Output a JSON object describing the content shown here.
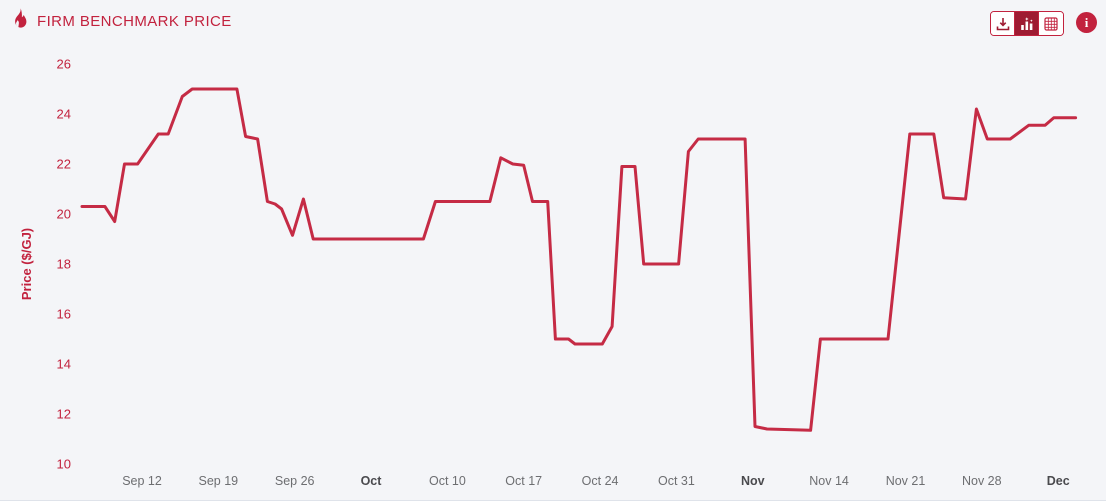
{
  "header": {
    "title": "FIRM BENCHMARK PRICE",
    "toolbar": {
      "buttons": [
        {
          "name": "download",
          "icon": "download-icon",
          "active": false
        },
        {
          "name": "chart-view",
          "icon": "bar-chart-icon",
          "active": true
        },
        {
          "name": "table-view",
          "icon": "grid-icon",
          "active": false
        }
      ],
      "info_label": "i"
    }
  },
  "colors": {
    "background": "#f4f5f8",
    "accent": "#c2223e",
    "line": "#c52b45",
    "dark_red": "#9e1b32",
    "x_label": "#6d6e71",
    "x_label_bold": "#4a4a4e"
  },
  "chart_data": {
    "type": "line",
    "title": "FIRM BENCHMARK PRICE",
    "xlabel": "",
    "ylabel": "Price ($/GJ)",
    "ylim": [
      10,
      26
    ],
    "y_ticks": [
      26,
      24,
      22,
      20,
      18,
      16,
      14,
      12,
      10
    ],
    "grid": false,
    "legend": "none",
    "x_unit": "days from first point (approx. Sep 6 to Dec 6)",
    "x_ticks": [
      {
        "label": "Sep 12",
        "day": 5.5,
        "bold": false
      },
      {
        "label": "Sep 19",
        "day": 12.5,
        "bold": false
      },
      {
        "label": "Sep 26",
        "day": 19.5,
        "bold": false
      },
      {
        "label": "Oct",
        "day": 26.5,
        "bold": true
      },
      {
        "label": "Oct 10",
        "day": 33.5,
        "bold": false
      },
      {
        "label": "Oct 17",
        "day": 40.5,
        "bold": false
      },
      {
        "label": "Oct 24",
        "day": 47.5,
        "bold": false
      },
      {
        "label": "Oct 31",
        "day": 54.5,
        "bold": false
      },
      {
        "label": "Nov",
        "day": 61.5,
        "bold": true
      },
      {
        "label": "Nov 14",
        "day": 68.5,
        "bold": false
      },
      {
        "label": "Nov 21",
        "day": 75.5,
        "bold": false
      },
      {
        "label": "Nov 28",
        "day": 82.5,
        "bold": false
      },
      {
        "label": "Dec",
        "day": 89.5,
        "bold": true
      }
    ],
    "series": [
      {
        "name": "Firm Benchmark Price",
        "unit": "$/GJ",
        "points": [
          [
            0,
            20.3
          ],
          [
            2.1,
            20.3
          ],
          [
            3.0,
            19.7
          ],
          [
            3.9,
            22.0
          ],
          [
            5.1,
            22.0
          ],
          [
            7.0,
            23.2
          ],
          [
            7.9,
            23.2
          ],
          [
            9.2,
            24.7
          ],
          [
            10.1,
            25.0
          ],
          [
            14.2,
            25.0
          ],
          [
            15.0,
            23.1
          ],
          [
            16.1,
            23.0
          ],
          [
            17.0,
            20.5
          ],
          [
            17.7,
            20.4
          ],
          [
            18.3,
            20.2
          ],
          [
            19.3,
            19.15
          ],
          [
            20.3,
            20.6
          ],
          [
            21.2,
            19.0
          ],
          [
            31.3,
            19.0
          ],
          [
            32.4,
            20.5
          ],
          [
            37.4,
            20.5
          ],
          [
            38.4,
            22.25
          ],
          [
            39.5,
            22.0
          ],
          [
            40.5,
            21.95
          ],
          [
            41.3,
            20.5
          ],
          [
            42.7,
            20.5
          ],
          [
            43.4,
            15.0
          ],
          [
            44.6,
            15.0
          ],
          [
            45.2,
            14.8
          ],
          [
            47.7,
            14.8
          ],
          [
            48.6,
            15.5
          ],
          [
            49.5,
            21.9
          ],
          [
            50.7,
            21.9
          ],
          [
            51.5,
            18.0
          ],
          [
            54.7,
            18.0
          ],
          [
            55.6,
            22.5
          ],
          [
            56.5,
            23.0
          ],
          [
            60.8,
            23.0
          ],
          [
            61.7,
            11.5
          ],
          [
            62.8,
            11.4
          ],
          [
            66.8,
            11.35
          ],
          [
            67.7,
            15.0
          ],
          [
            73.9,
            15.0
          ],
          [
            75.9,
            23.2
          ],
          [
            78.1,
            23.2
          ],
          [
            79.0,
            20.65
          ],
          [
            81.0,
            20.6
          ],
          [
            82.0,
            24.2
          ],
          [
            83.0,
            23.0
          ],
          [
            85.1,
            23.0
          ],
          [
            86.8,
            23.55
          ],
          [
            88.3,
            23.55
          ],
          [
            89.1,
            23.85
          ],
          [
            91.1,
            23.85
          ]
        ]
      }
    ]
  }
}
